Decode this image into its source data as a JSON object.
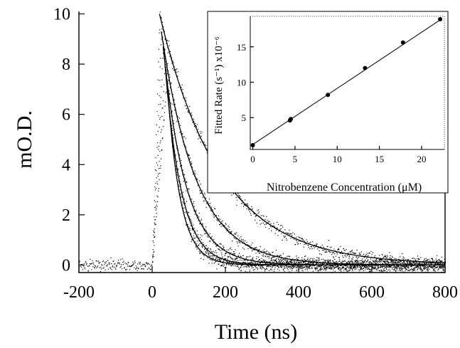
{
  "chart_data": [
    {
      "type": "scatter",
      "title": "",
      "xlabel": "Time (ns)",
      "ylabel": "mO.D.",
      "xlim": [
        -200,
        800
      ],
      "ylim": [
        -0.3,
        10.1
      ],
      "xticks": [
        -200,
        0,
        200,
        400,
        600,
        800
      ],
      "xtick_labels": [
        "-200",
        "0",
        "200",
        "400",
        "600",
        "800"
      ],
      "yticks": [
        0,
        2,
        4,
        6,
        8,
        10
      ],
      "ytick_labels": [
        "0",
        "2",
        "4",
        "6",
        "8",
        "10"
      ],
      "grid": false,
      "legend": "none",
      "rise_start_ns": 0,
      "series": [
        {
          "peak_time_ns": 20,
          "peak_mOD": 10.0,
          "decay_tau_ns": 165
        },
        {
          "peak_time_ns": 25,
          "peak_mOD": 9.3,
          "decay_tau_ns": 95
        },
        {
          "peak_time_ns": 30,
          "peak_mOD": 8.7,
          "decay_tau_ns": 62
        },
        {
          "peak_time_ns": 35,
          "peak_mOD": 8.0,
          "decay_tau_ns": 45
        },
        {
          "peak_time_ns": 40,
          "peak_mOD": 7.4,
          "decay_tau_ns": 36
        }
      ]
    },
    {
      "type": "scatter",
      "title": "",
      "xlabel": "Nitrobenzene Concentration (μM)",
      "ylabel": "Fitted Rate (s⁻¹) x10⁻⁶",
      "xlim": [
        -0.3,
        22.7
      ],
      "ylim": [
        0.5,
        19.3
      ],
      "xticks": [
        0,
        5,
        10,
        15,
        20
      ],
      "xtick_labels": [
        "0",
        "5",
        "10",
        "15",
        "20"
      ],
      "yticks": [
        5,
        10,
        15
      ],
      "ytick_labels": [
        "5",
        "10",
        "15"
      ],
      "grid": false,
      "legend": "none",
      "x": [
        0,
        4.4,
        4.5,
        8.9,
        13.3,
        17.8,
        22.2
      ],
      "y": [
        1.1,
        4.6,
        4.8,
        8.2,
        12.0,
        15.6,
        18.9
      ],
      "fit_line": {
        "x": [
          0,
          22.2
        ],
        "y": [
          1.2,
          18.8
        ]
      }
    }
  ]
}
